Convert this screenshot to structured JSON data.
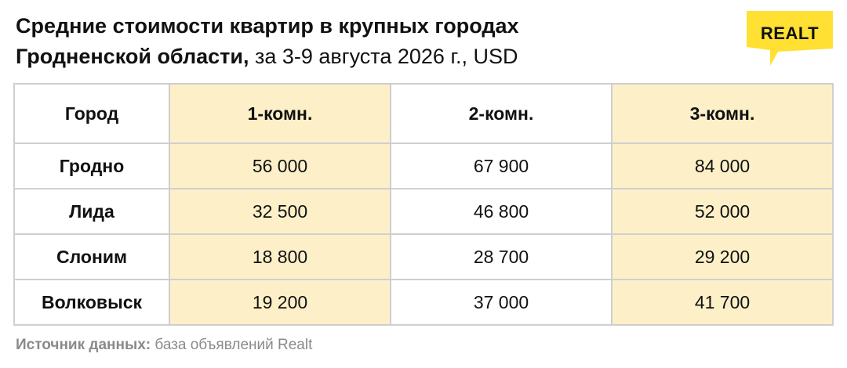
{
  "header": {
    "title_line1": "Средние стоимости квартир в крупных городах",
    "title_line2_bold": "Гродненской области,",
    "title_line2_rest": "за 3-9 августа 2026 г., USD"
  },
  "logo": {
    "text": "REALT",
    "color": "#FFE033"
  },
  "chart_data": {
    "type": "table",
    "columns": [
      "Город",
      "1-комн.",
      "2-комн.",
      "3-комн."
    ],
    "rows": [
      {
        "city": "Гродно",
        "r1": "56 000",
        "r2": "67 900",
        "r3": "84 000"
      },
      {
        "city": "Лида",
        "r1": "32 500",
        "r2": "46 800",
        "r3": "52 000"
      },
      {
        "city": "Слоним",
        "r1": "18 800",
        "r2": "28 700",
        "r3": "29 200"
      },
      {
        "city": "Волковыск",
        "r1": "19 200",
        "r2": "37 000",
        "r3": "41 700"
      }
    ],
    "highlight_columns": [
      "1-комн.",
      "3-комн."
    ],
    "highlight_color": "#FDF0C8"
  },
  "footer": {
    "source_label": "Источник данных:",
    "source_text": "база объявлений Realt"
  }
}
